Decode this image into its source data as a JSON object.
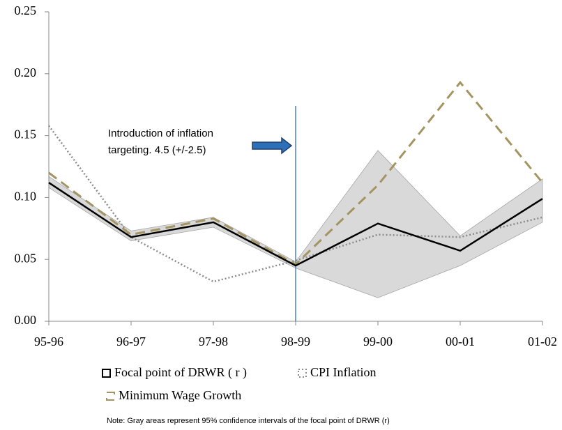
{
  "chart_data": {
    "type": "line",
    "categories": [
      "95-96",
      "96-97",
      "97-98",
      "98-99",
      "99-00",
      "00-01",
      "01-02"
    ],
    "series": [
      {
        "name": "Focal point of DRWR ( r )",
        "color": "#000000",
        "style": "solid",
        "values": [
          0.112,
          0.068,
          0.08,
          0.045,
          0.079,
          0.057,
          0.099
        ]
      },
      {
        "name": "CPI Inflation",
        "color": "#8c8c8c",
        "style": "dotted",
        "values": [
          0.158,
          0.068,
          0.032,
          0.049,
          0.07,
          0.068,
          0.084
        ]
      },
      {
        "name": "Minimum Wage Growth",
        "color": "#a49462",
        "style": "dashed",
        "values": [
          0.12,
          0.07,
          0.083,
          0.046,
          0.11,
          0.193,
          0.112
        ]
      }
    ],
    "band": {
      "color": "#d9d9d9",
      "upper": [
        0.117,
        0.073,
        0.084,
        0.048,
        0.138,
        0.069,
        0.115
      ],
      "lower": [
        0.108,
        0.065,
        0.076,
        0.043,
        0.019,
        0.045,
        0.08
      ]
    },
    "ylim": [
      0,
      0.25
    ],
    "yticks": [
      {
        "value": 0,
        "label": "0.00"
      },
      {
        "value": 0.05,
        "label": "0.05"
      },
      {
        "value": 0.1,
        "label": "0.10"
      },
      {
        "value": 0.15,
        "label": "0.15"
      },
      {
        "value": 0.2,
        "label": "0.20"
      },
      {
        "value": 0.25,
        "label": "0.25"
      }
    ],
    "annotation": {
      "lines": [
        "Introduction of inflation",
        "targeting. 4.5 (+/-2.5)"
      ],
      "category_index": 3,
      "color": "#4f81bd"
    },
    "note": "Note: Gray areas represent 95% confidence intervals of the focal point of DRWR (r)"
  }
}
